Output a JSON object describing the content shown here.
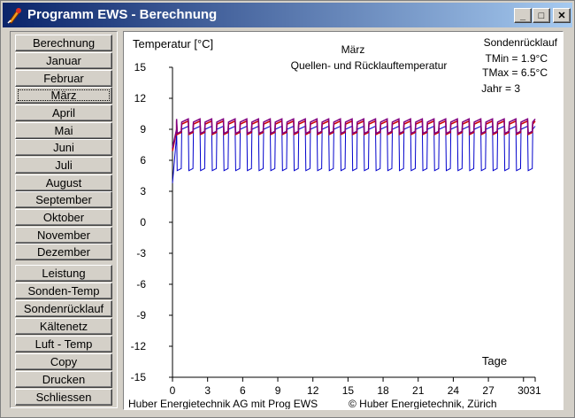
{
  "window": {
    "title": "Programm EWS - Berechnung",
    "buttons": {
      "minimize": "_",
      "maximize": "□",
      "close": "✕"
    }
  },
  "nav": {
    "items": [
      {
        "label": "Berechnung"
      },
      {
        "label": "Januar"
      },
      {
        "label": "Februar"
      },
      {
        "label": "März",
        "active": true
      },
      {
        "label": "April"
      },
      {
        "label": "Mai"
      },
      {
        "label": "Juni"
      },
      {
        "label": "Juli"
      },
      {
        "label": "August"
      },
      {
        "label": "September"
      },
      {
        "label": "Oktober"
      },
      {
        "label": "November"
      },
      {
        "label": "Dezember"
      },
      {
        "label": "Leistung"
      },
      {
        "label": "Sonden-Temp"
      },
      {
        "label": "Sondenrücklauf"
      },
      {
        "label": "Kältenetz"
      },
      {
        "label": "Luft - Temp"
      },
      {
        "label": "Copy"
      },
      {
        "label": "Drucken"
      },
      {
        "label": "Schliessen"
      }
    ]
  },
  "chart_data": {
    "type": "line",
    "title": "März",
    "subtitle": "Quellen- und Rücklauftemperatur",
    "ylabel": "Temperatur [°C]",
    "xlabel": "Tage",
    "ylim": [
      -15,
      15
    ],
    "xlim": [
      0,
      31
    ],
    "yticks": [
      "15",
      "12",
      "9",
      "6",
      "3",
      "0",
      "-3",
      "-6",
      "-9",
      "-12",
      "-15"
    ],
    "xticks": [
      "0",
      "3",
      "6",
      "9",
      "12",
      "15",
      "18",
      "21",
      "24",
      "27",
      "30"
    ],
    "xticks_extra": [
      "31"
    ],
    "info": {
      "heading": "Sondenrücklauf",
      "tmin": "TMin  = 1.9°C",
      "tmax": "TMax = 6.5°C",
      "jahr": "Jahr = 3"
    },
    "footer_left": "Huber Energietechnik AG mit Prog EWS",
    "footer_right": "© Huber Energietechnik, Zürich",
    "series": [
      {
        "color": "#0000cc",
        "daily_low": 5.0,
        "daily_high": 9.3,
        "start": 3.8
      },
      {
        "color": "#cc0000",
        "daily_low": 8.5,
        "daily_high": 9.8,
        "start": 6.9
      },
      {
        "color": "#800080",
        "daily_low": 8.6,
        "daily_high": 10.0,
        "start": 7.2
      }
    ]
  }
}
